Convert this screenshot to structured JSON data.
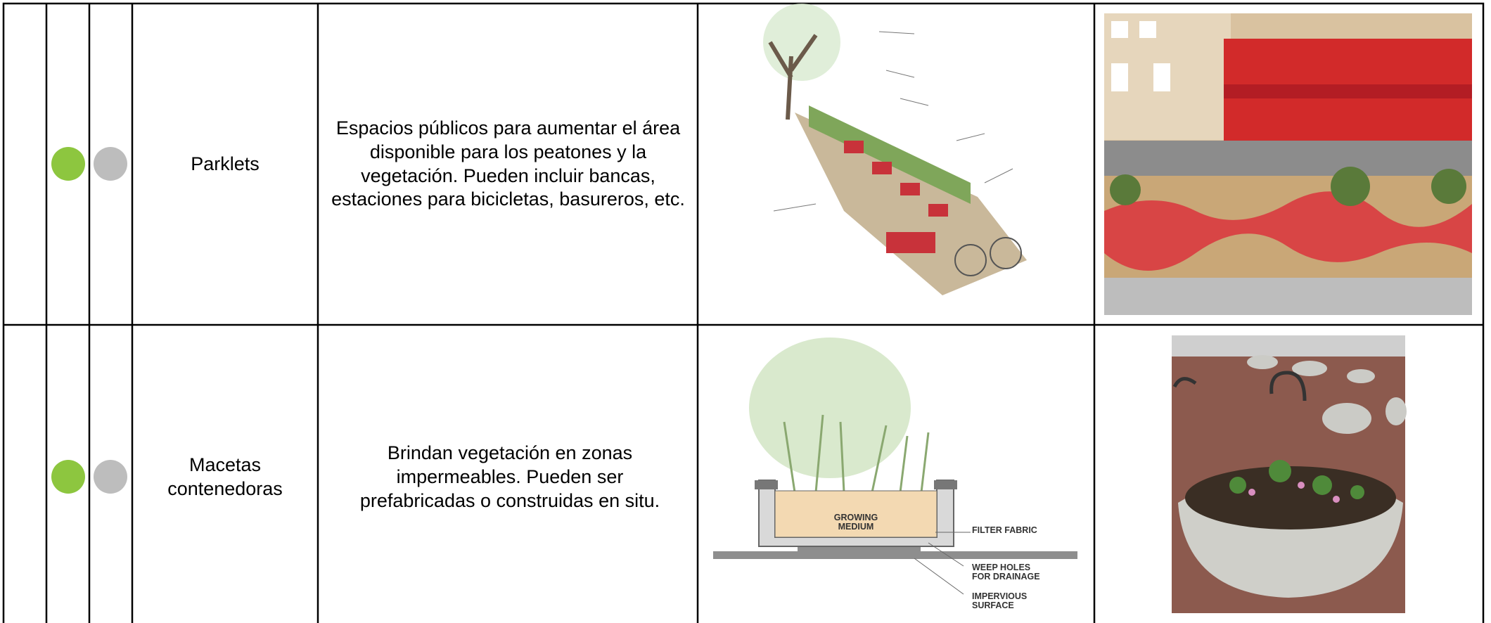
{
  "table": {
    "rows": [
      {
        "name": "Parklets",
        "description": "Espacios públicos para aumentar el área disponible para los peatones y la vegetación. Pueden incluir bancas, estaciones para bicicletas, basureros, etc."
      },
      {
        "name": "Macetas contenedoras",
        "description": "Brindan vegetación en zonas impermeables. Pueden ser prefabricadas o construidas en situ.",
        "diagram_labels": [
          "GROWING MEDIUM",
          "FILTER FABRIC",
          "WEEP HOLES FOR DRAINAGE",
          "IMPERVIOUS SURFACE"
        ]
      }
    ]
  }
}
